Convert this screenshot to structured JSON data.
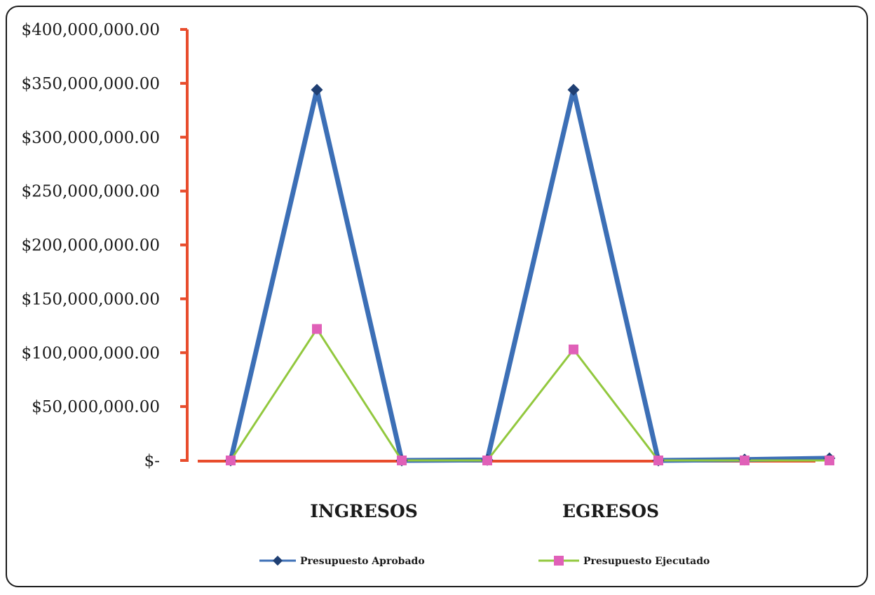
{
  "chart_data": {
    "type": "line",
    "title": "",
    "xlabel": "",
    "ylabel": "",
    "ylim": [
      0,
      400000000
    ],
    "y_ticks": [
      "$400,000,000.00",
      "$350,000,000.00",
      "$300,000,000.00",
      "$250,000,000.00",
      "$200,000,000.00",
      "$150,000,000.00",
      "$100,000,000.00",
      "$50,000,000.00",
      "$-"
    ],
    "y_tick_values": [
      400000000,
      350000000,
      300000000,
      250000000,
      200000000,
      150000000,
      100000000,
      50000000,
      0
    ],
    "category_labels": [
      "INGRESOS",
      "EGRESOS"
    ],
    "grid": false,
    "legend_position": "bottom",
    "axis_color": "#e84c2c",
    "series": [
      {
        "name": "Presupuesto Aprobado",
        "color": "#3c6fb6",
        "marker": "diamond",
        "marker_color": "#1f3f73",
        "values": [
          0,
          344000000,
          0,
          500000,
          344000000,
          0,
          800000,
          2000000
        ]
      },
      {
        "name": "Presupuesto Ejecutado",
        "color": "#92c83e",
        "marker": "square",
        "marker_color": "#e060b8",
        "values": [
          0,
          122000000,
          0,
          0,
          103000000,
          0,
          0,
          0
        ]
      }
    ]
  }
}
